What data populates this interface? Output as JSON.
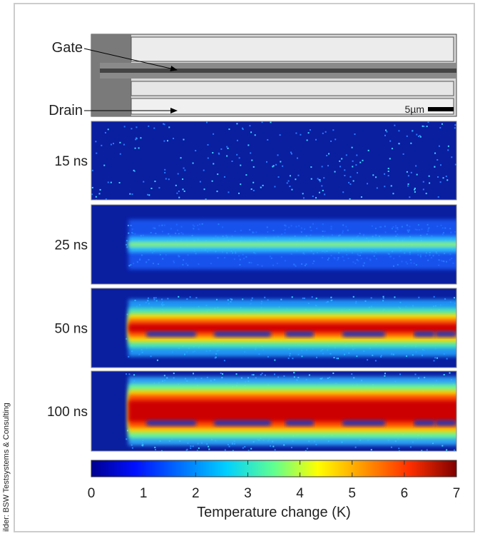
{
  "micrograph": {
    "gate_label": "Gate",
    "drain_label": "Drain",
    "scale_label": "5µm"
  },
  "panels": [
    {
      "label": "15 ns"
    },
    {
      "label": "25 ns"
    },
    {
      "label": "50 ns"
    },
    {
      "label": "100 ns"
    }
  ],
  "colorbar": {
    "lim": [
      0,
      7
    ],
    "ticks": [
      0,
      1,
      2,
      3,
      4,
      5,
      6,
      7
    ],
    "label": "Temperature change (K)"
  },
  "credit": "ilder: BSW Testsystems & Consulting"
}
